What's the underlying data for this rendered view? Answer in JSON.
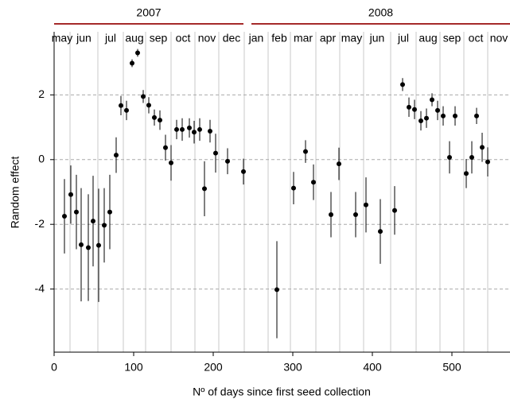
{
  "chart_data": {
    "type": "errorbar-scatter",
    "x_label": "Nº of days since first seed collection",
    "y_label": "Random effect",
    "xlim": [
      0,
      573
    ],
    "ylim": [
      -5.95,
      3.95
    ],
    "xticks": [
      0,
      100,
      200,
      300,
      400,
      500
    ],
    "yticks": [
      -4,
      -2,
      0,
      2
    ],
    "grid": true,
    "color": "#000000",
    "years": [
      {
        "label": "2007",
        "start": 0,
        "end": 238
      },
      {
        "label": "2008",
        "start": 248,
        "end": 573
      }
    ],
    "year_color": "#a52a2a",
    "months": [
      "may",
      "jun",
      "jul",
      "aug",
      "sep",
      "oct",
      "nov",
      "dec",
      "jan",
      "feb",
      "mar",
      "apr",
      "may",
      "jun",
      "jul",
      "aug",
      "sep",
      "oct",
      "nov"
    ],
    "month_boundaries": [
      20,
      55,
      87,
      115,
      147,
      177,
      207,
      239,
      269,
      297,
      329,
      359,
      389,
      423,
      455,
      485,
      515,
      545
    ],
    "x": [
      13,
      21,
      28,
      34,
      43,
      49,
      56,
      63,
      70,
      78,
      84,
      91,
      98,
      105,
      112,
      119,
      126,
      133,
      140,
      147,
      154,
      161,
      170,
      176,
      183,
      189,
      196,
      203,
      218,
      238,
      280,
      301,
      316,
      326,
      348,
      358,
      379,
      392,
      410,
      428,
      438,
      446,
      453,
      461,
      468,
      475,
      482,
      489,
      497,
      504,
      518,
      525,
      531,
      538,
      545
    ],
    "y": [
      -1.75,
      -1.08,
      -1.62,
      -2.63,
      -2.72,
      -1.9,
      -2.65,
      -2.03,
      -1.62,
      0.14,
      1.67,
      1.52,
      2.98,
      3.3,
      1.95,
      1.68,
      1.3,
      1.22,
      0.37,
      -0.1,
      0.93,
      0.93,
      0.98,
      0.85,
      0.93,
      -0.9,
      0.88,
      0.2,
      -0.05,
      -0.37,
      -4.02,
      -0.88,
      0.25,
      -0.7,
      -1.7,
      -0.13,
      -1.7,
      -1.4,
      -2.22,
      -1.57,
      2.32,
      1.62,
      1.55,
      1.2,
      1.28,
      1.85,
      1.52,
      1.35,
      0.07,
      1.35,
      -0.43,
      0.07,
      1.35,
      0.38,
      -0.07
    ],
    "errors": [
      1.15,
      0.9,
      1.15,
      1.75,
      1.65,
      1.4,
      1.75,
      1.15,
      1.15,
      0.55,
      0.3,
      0.3,
      0.12,
      0.12,
      0.2,
      0.25,
      0.25,
      0.3,
      0.4,
      0.55,
      0.3,
      0.35,
      0.3,
      0.35,
      0.35,
      0.85,
      0.35,
      0.6,
      0.4,
      0.4,
      1.5,
      0.5,
      0.35,
      0.55,
      0.7,
      0.5,
      0.7,
      0.85,
      1.0,
      0.75,
      0.2,
      0.3,
      0.3,
      0.3,
      0.3,
      0.2,
      0.3,
      0.3,
      0.5,
      0.3,
      0.45,
      0.5,
      0.25,
      0.45,
      0.45
    ]
  }
}
